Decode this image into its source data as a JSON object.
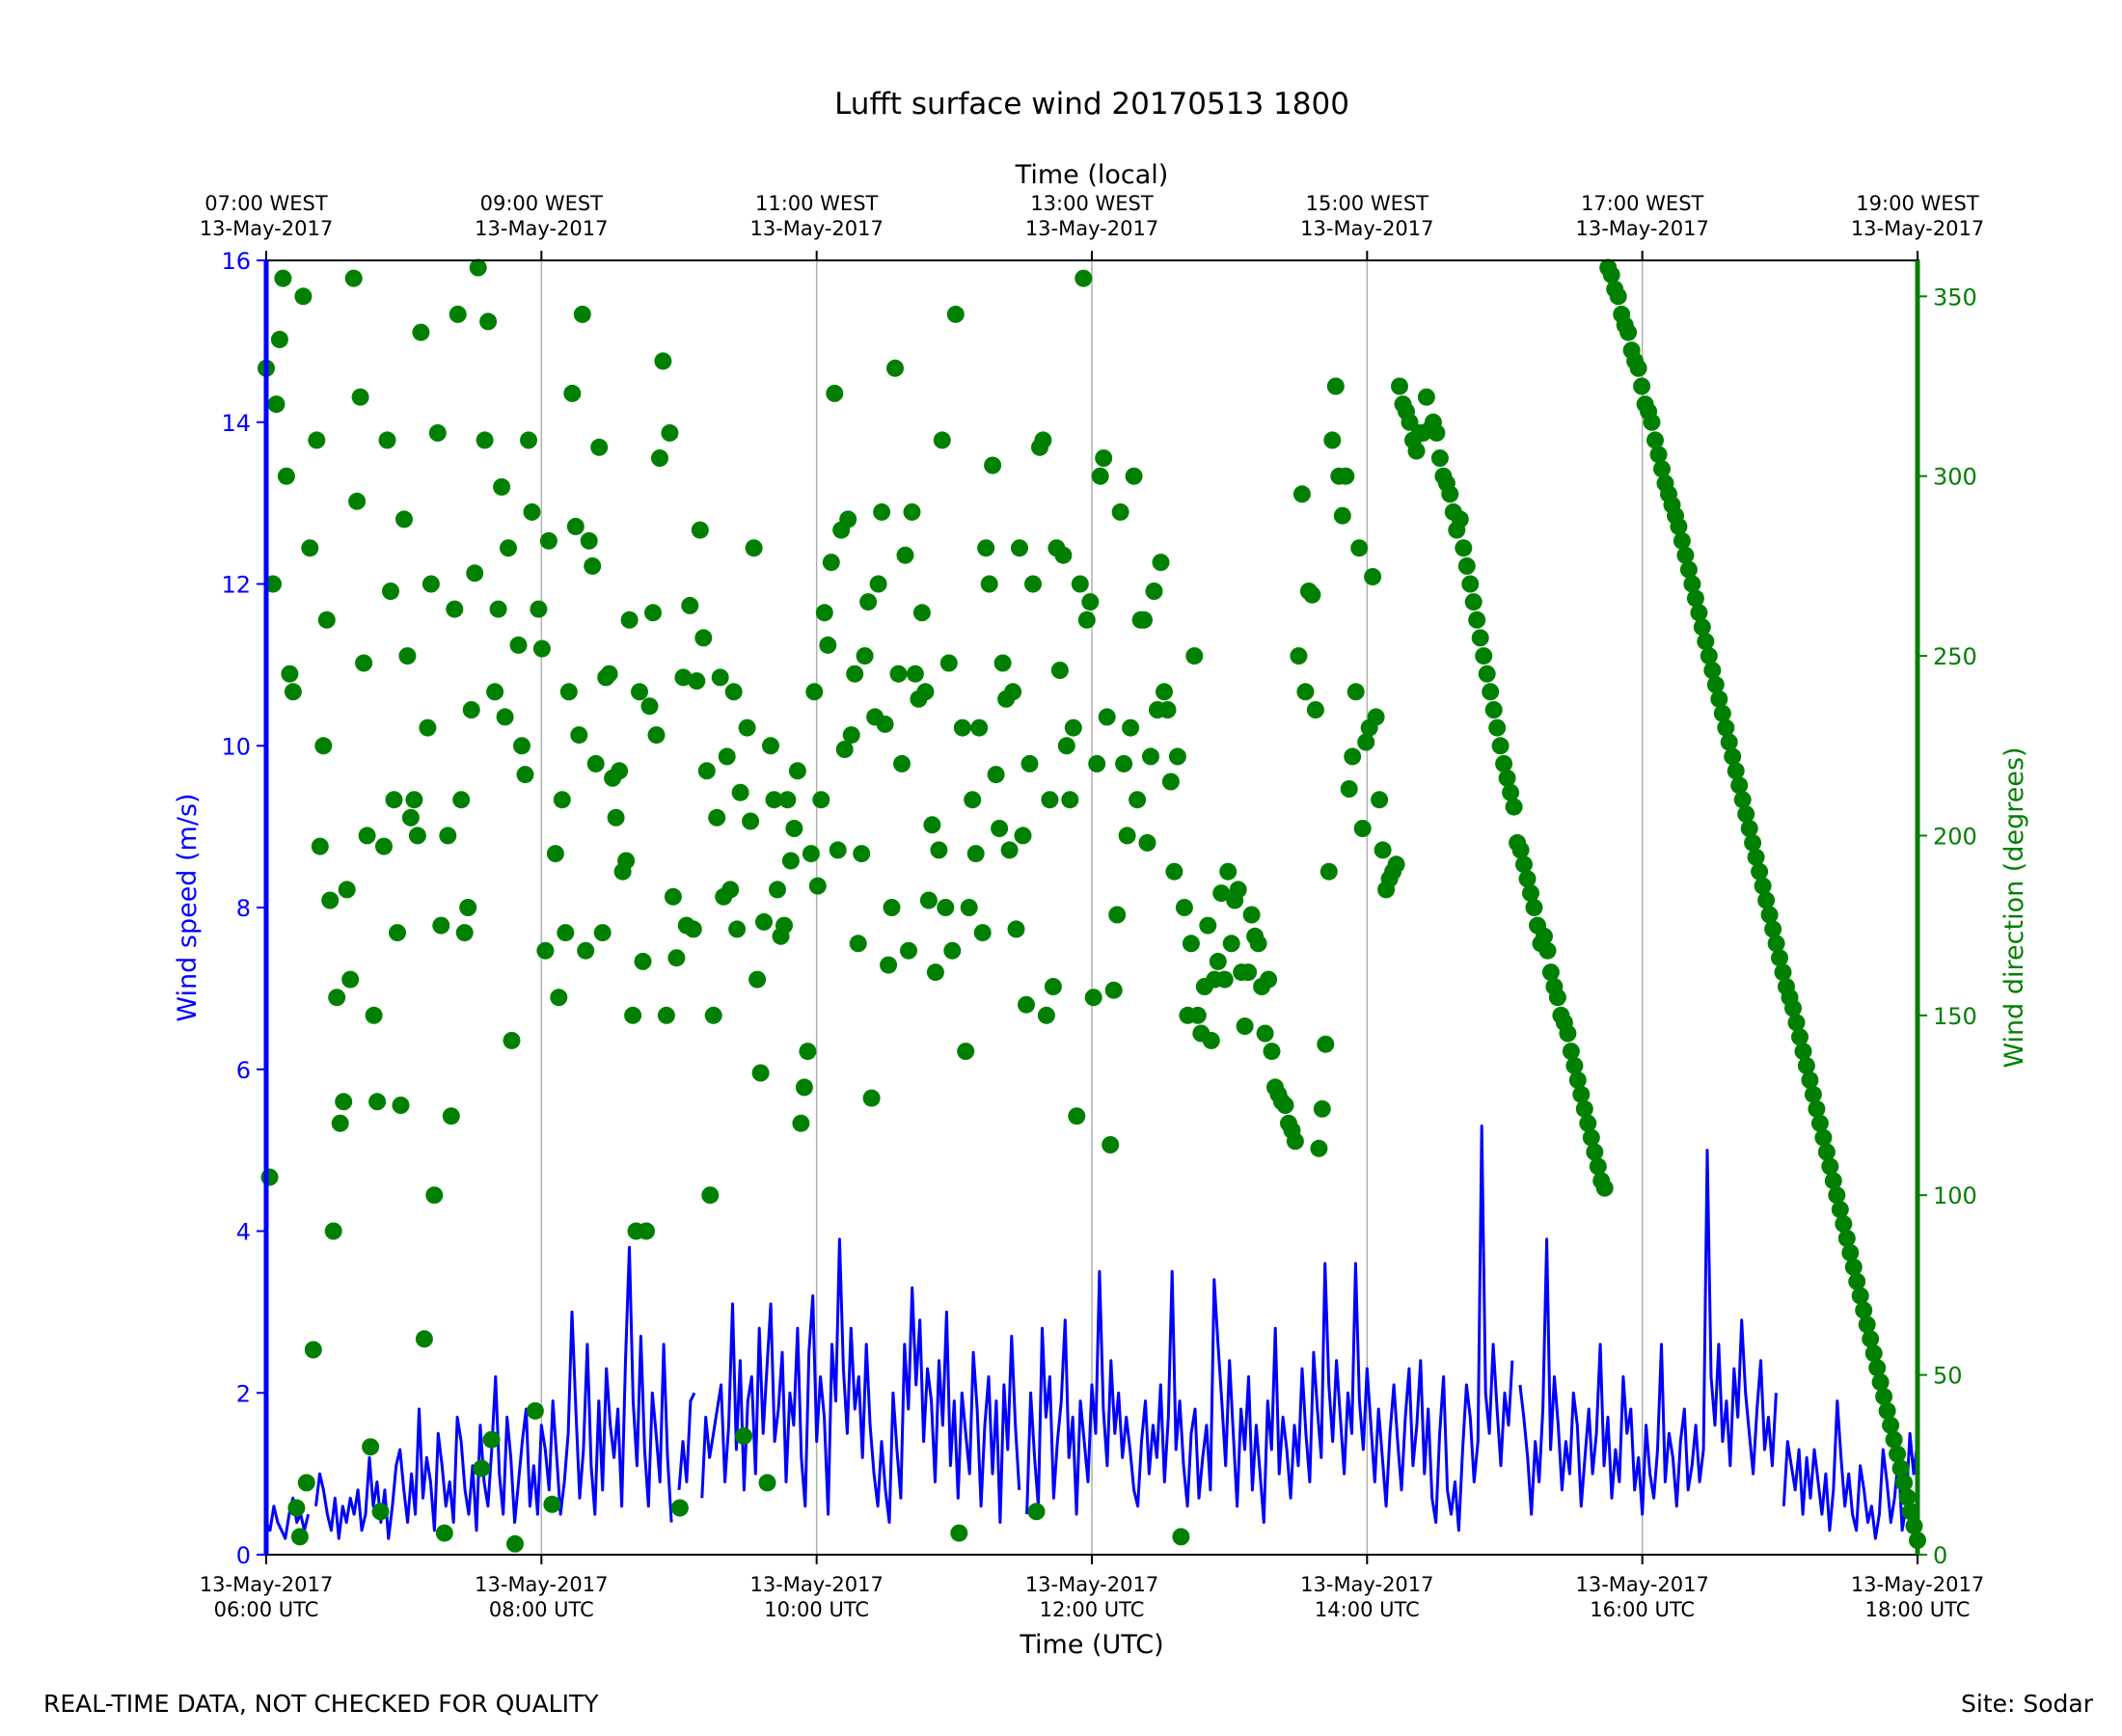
{
  "chart_data": {
    "type": "line+scatter",
    "title": "Lufft surface wind 20170513 1800",
    "xlabel": "Time (UTC)",
    "x2label": "Time (local)",
    "ylabel": "Wind speed (m/s)",
    "y2label": "Wind direction (degrees)",
    "xlim": [
      "2017-05-13 06:00",
      "2017-05-13 18:00"
    ],
    "ylim": [
      0,
      16
    ],
    "y2lim": [
      0,
      360
    ],
    "yticks": [
      "0",
      "2",
      "4",
      "6",
      "8",
      "10",
      "12",
      "14",
      "16"
    ],
    "y2ticks": [
      "0",
      "50",
      "100",
      "150",
      "200",
      "250",
      "300",
      "350"
    ],
    "xticks": [
      {
        "date": "13-May-2017",
        "time": "06:00 UTC"
      },
      {
        "date": "13-May-2017",
        "time": "08:00 UTC"
      },
      {
        "date": "13-May-2017",
        "time": "10:00 UTC"
      },
      {
        "date": "13-May-2017",
        "time": "12:00 UTC"
      },
      {
        "date": "13-May-2017",
        "time": "14:00 UTC"
      },
      {
        "date": "13-May-2017",
        "time": "16:00 UTC"
      },
      {
        "date": "13-May-2017",
        "time": "18:00 UTC"
      }
    ],
    "x2ticks": [
      {
        "time": "07:00 WEST",
        "date": "13-May-2017"
      },
      {
        "time": "09:00 WEST",
        "date": "13-May-2017"
      },
      {
        "time": "11:00 WEST",
        "date": "13-May-2017"
      },
      {
        "time": "13:00 WEST",
        "date": "13-May-2017"
      },
      {
        "time": "15:00 WEST",
        "date": "13-May-2017"
      },
      {
        "time": "17:00 WEST",
        "date": "13-May-2017"
      },
      {
        "time": "19:00 WEST",
        "date": "13-May-2017"
      }
    ],
    "grid": "vertical lines at x ticks",
    "colors": {
      "speed": "#0000ff",
      "direction": "#008000"
    },
    "series": [
      {
        "axis": "left",
        "style": "line",
        "x_start": "2017-05-13 06:00",
        "x_end": "2017-05-13 18:00",
        "values": [
          0.4,
          0.3,
          0.6,
          0.4,
          0.3,
          0.2,
          0.5,
          0.7,
          0.4,
          0.5,
          0.3,
          0.5,
          null,
          0.6,
          1.0,
          0.8,
          0.5,
          0.3,
          0.7,
          0.2,
          0.6,
          0.4,
          0.7,
          0.5,
          0.8,
          0.3,
          0.5,
          1.2,
          0.6,
          0.9,
          0.4,
          0.8,
          0.2,
          0.6,
          1.1,
          1.3,
          0.8,
          0.4,
          1.0,
          0.5,
          1.8,
          0.7,
          1.2,
          0.9,
          0.3,
          1.5,
          1.1,
          0.6,
          0.9,
          0.4,
          1.7,
          1.4,
          0.8,
          0.5,
          1.1,
          0.3,
          1.6,
          0.9,
          0.6,
          1.3,
          2.2,
          1.0,
          0.5,
          1.7,
          1.2,
          0.4,
          0.9,
          1.4,
          1.8,
          0.6,
          1.1,
          0.5,
          1.6,
          1.3,
          0.8,
          1.9,
          1.2,
          0.5,
          0.9,
          1.5,
          3.0,
          1.8,
          0.7,
          1.3,
          2.6,
          1.1,
          0.5,
          1.9,
          0.8,
          2.3,
          1.6,
          1.2,
          1.8,
          0.6,
          2.4,
          3.8,
          1.9,
          1.1,
          2.7,
          1.3,
          0.6,
          2.0,
          1.5,
          0.9,
          2.6,
          1.2,
          0.4,
          null,
          0.8,
          1.4,
          0.9,
          1.9,
          2.0,
          null,
          0.7,
          1.7,
          1.2,
          1.5,
          1.8,
          2.1,
          0.9,
          1.6,
          3.1,
          1.3,
          2.4,
          0.8,
          1.9,
          2.2,
          1.0,
          2.8,
          1.5,
          2.3,
          3.1,
          1.4,
          1.8,
          2.5,
          0.9,
          2.0,
          1.6,
          2.8,
          1.2,
          0.6,
          2.5,
          3.2,
          1.4,
          2.2,
          1.7,
          0.5,
          2.6,
          1.9,
          3.9,
          2.3,
          1.5,
          2.8,
          1.8,
          2.2,
          1.2,
          2.6,
          1.6,
          1.0,
          0.6,
          1.4,
          0.8,
          0.4,
          2.0,
          1.3,
          0.7,
          2.6,
          1.8,
          3.3,
          2.1,
          2.9,
          1.4,
          2.3,
          1.9,
          0.9,
          2.4,
          1.6,
          3.0,
          1.1,
          1.9,
          0.7,
          2.0,
          1.5,
          1.0,
          2.5,
          1.8,
          0.6,
          1.6,
          2.2,
          1.0,
          1.9,
          0.4,
          2.1,
          1.3,
          2.7,
          1.6,
          0.8,
          null,
          0.5,
          2.0,
          1.2,
          0.6,
          2.8,
          1.7,
          2.2,
          0.7,
          1.4,
          1.9,
          2.9,
          1.2,
          1.7,
          0.5,
          1.9,
          1.4,
          0.9,
          2.1,
          1.5,
          3.5,
          1.8,
          1.1,
          2.4,
          1.5,
          2.0,
          1.2,
          1.7,
          1.3,
          0.8,
          0.6,
          1.4,
          1.9,
          1.0,
          1.6,
          1.2,
          2.1,
          0.9,
          1.7,
          3.5,
          1.3,
          1.9,
          1.1,
          0.6,
          1.5,
          1.8,
          0.7,
          1.2,
          1.6,
          0.8,
          3.4,
          2.6,
          1.9,
          1.1,
          2.4,
          1.5,
          0.6,
          1.8,
          1.3,
          2.2,
          0.8,
          1.6,
          1.0,
          0.4,
          1.9,
          1.3,
          2.8,
          1.0,
          1.7,
          1.3,
          0.7,
          1.6,
          1.1,
          2.3,
          1.5,
          0.9,
          2.5,
          1.8,
          1.2,
          3.6,
          2.1,
          1.4,
          2.4,
          1.7,
          1.0,
          2.0,
          1.5,
          3.6,
          1.9,
          1.3,
          2.3,
          1.6,
          0.9,
          1.8,
          1.2,
          0.6,
          1.5,
          2.1,
          1.4,
          0.8,
          1.7,
          2.3,
          1.1,
          1.6,
          2.4,
          1.0,
          1.8,
          0.7,
          0.4,
          1.5,
          2.2,
          0.8,
          0.5,
          0.9,
          0.3,
          1.3,
          2.1,
          1.7,
          0.9,
          1.4,
          5.3,
          2.0,
          1.5,
          2.6,
          1.8,
          1.1,
          2.0,
          1.6,
          2.4,
          null,
          2.1,
          1.7,
          1.2,
          0.5,
          1.4,
          0.9,
          1.8,
          3.9,
          1.3,
          2.2,
          1.6,
          0.8,
          1.4,
          1.0,
          2.0,
          1.6,
          0.6,
          1.2,
          1.8,
          1.0,
          1.5,
          2.6,
          1.1,
          1.7,
          0.7,
          1.3,
          0.9,
          2.2,
          1.5,
          1.8,
          0.8,
          1.2,
          0.5,
          1.6,
          1.0,
          0.7,
          1.3,
          2.6,
          0.9,
          1.5,
          1.2,
          0.6,
          1.4,
          1.8,
          0.8,
          1.1,
          1.6,
          0.9,
          1.3,
          5.0,
          2.2,
          1.6,
          2.6,
          1.4,
          1.9,
          1.1,
          2.3,
          1.7,
          2.9,
          2.0,
          1.5,
          1.0,
          1.8,
          2.4,
          1.3,
          1.7,
          1.1,
          2.0,
          null,
          0.6,
          1.4,
          1.1,
          0.8,
          1.3,
          0.5,
          1.2,
          0.7,
          1.3,
          0.9,
          0.5,
          1.0,
          0.3,
          0.8,
          1.9,
          1.2,
          0.6,
          1.0,
          0.5,
          0.3,
          1.1,
          0.8,
          0.4,
          0.6,
          0.2,
          0.5,
          1.3,
          0.9,
          0.4,
          0.7,
          1.2,
          0.3,
          0.6,
          1.5,
          1.0,
          1.4
        ]
      },
      {
        "axis": "right",
        "style": "scatter",
        "x_start": "2017-05-13 06:00",
        "x_end": "2017-05-13 18:00",
        "values": [
          330,
          105,
          270,
          320,
          338,
          355,
          300,
          245,
          240,
          13,
          5,
          350,
          20,
          280,
          57,
          310,
          197,
          225,
          260,
          182,
          90,
          155,
          120,
          126,
          185,
          160,
          355,
          293,
          322,
          248,
          200,
          30,
          150,
          126,
          12,
          197,
          310,
          268,
          210,
          173,
          125,
          288,
          250,
          205,
          210,
          200,
          340,
          60,
          230,
          270,
          100,
          312,
          175,
          6,
          200,
          122,
          263,
          345,
          210,
          173,
          180,
          235,
          273,
          358,
          24,
          310,
          343,
          32,
          240,
          263,
          297,
          233,
          280,
          143,
          3,
          253,
          225,
          217,
          310,
          290,
          40,
          263,
          252,
          168,
          282,
          14,
          195,
          155,
          210,
          173,
          240,
          323,
          286,
          228,
          345,
          168,
          282,
          275,
          220,
          308,
          173,
          244,
          245,
          216,
          205,
          218,
          190,
          193,
          260,
          150,
          90,
          240,
          165,
          90,
          236,
          262,
          228,
          305,
          332,
          150,
          312,
          183,
          166,
          13,
          244,
          175,
          264,
          174,
          243,
          285,
          255,
          218,
          100,
          150,
          205,
          244,
          183,
          222,
          185,
          240,
          174,
          212,
          33,
          230,
          204,
          280,
          160,
          134,
          176,
          20,
          225,
          210,
          185,
          172,
          175,
          210,
          193,
          202,
          218,
          120,
          130,
          140,
          195,
          240,
          186,
          210,
          262,
          253,
          276,
          323,
          196,
          285,
          224,
          288,
          228,
          245,
          170,
          195,
          250,
          265,
          127,
          233,
          270,
          290,
          231,
          164,
          180,
          330,
          245,
          220,
          278,
          168,
          290,
          245,
          238,
          262,
          240,
          182,
          203,
          162,
          196,
          310,
          180,
          248,
          168,
          345,
          6,
          230,
          140,
          180,
          210,
          195,
          230,
          173,
          280,
          270,
          303,
          217,
          202,
          248,
          238,
          196,
          240,
          174,
          280,
          200,
          153,
          220,
          270,
          12,
          308,
          310,
          150,
          210,
          158,
          280,
          246,
          278,
          225,
          210,
          230,
          122,
          270,
          355,
          260,
          265,
          155,
          220,
          300,
          305,
          233,
          114,
          157,
          178,
          290,
          220,
          200,
          230,
          300,
          210,
          260,
          260,
          198,
          222,
          268,
          235,
          276,
          240,
          235,
          215,
          190,
          222,
          5,
          180,
          150,
          170,
          250,
          150,
          145,
          158,
          175,
          143,
          160,
          165,
          184,
          160,
          190,
          170,
          182,
          185,
          162,
          147,
          162,
          178,
          172,
          170,
          158,
          145,
          160,
          140,
          130,
          128,
          126,
          125,
          120,
          118,
          115,
          250,
          295,
          240,
          268,
          267,
          235,
          113,
          124,
          142,
          190,
          310,
          325,
          300,
          289,
          300,
          213,
          222,
          240,
          280,
          202,
          226,
          230,
          272,
          233,
          210,
          196,
          185,
          188,
          190,
          192,
          325,
          320,
          318,
          315,
          310,
          307,
          312,
          312,
          322,
          313,
          315,
          312,
          305,
          300,
          298,
          295,
          290,
          285,
          288,
          280,
          275,
          270,
          265,
          260,
          255,
          250,
          245,
          240,
          235,
          230,
          225,
          220,
          216,
          212,
          208,
          198,
          196,
          192,
          188,
          184,
          180,
          175,
          170,
          172,
          168,
          162,
          158,
          155,
          150,
          148,
          145,
          140,
          136,
          132,
          128,
          124,
          120,
          116,
          112,
          108,
          104,
          102,
          358,
          356,
          352,
          350,
          345,
          342,
          340,
          335,
          332,
          330,
          325,
          320,
          318,
          315,
          310,
          306,
          302,
          298,
          295,
          292,
          289,
          286,
          282,
          278,
          274,
          270,
          266,
          262,
          258,
          254,
          250,
          246,
          242,
          238,
          234,
          230,
          226,
          222,
          218,
          214,
          210,
          206,
          202,
          198,
          194,
          190,
          186,
          182,
          178,
          174,
          170,
          166,
          162,
          158,
          155,
          152,
          148,
          144,
          140,
          136,
          132,
          128,
          124,
          120,
          116,
          112,
          108,
          104,
          100,
          96,
          92,
          88,
          84,
          80,
          76,
          72,
          68,
          64,
          60,
          56,
          52,
          48,
          44,
          40,
          36,
          32,
          28,
          24,
          20,
          16,
          12,
          8,
          4
        ]
      }
    ]
  },
  "footer": {
    "left": "REAL-TIME DATA, NOT CHECKED FOR QUALITY",
    "right": "Site: Sodar"
  }
}
